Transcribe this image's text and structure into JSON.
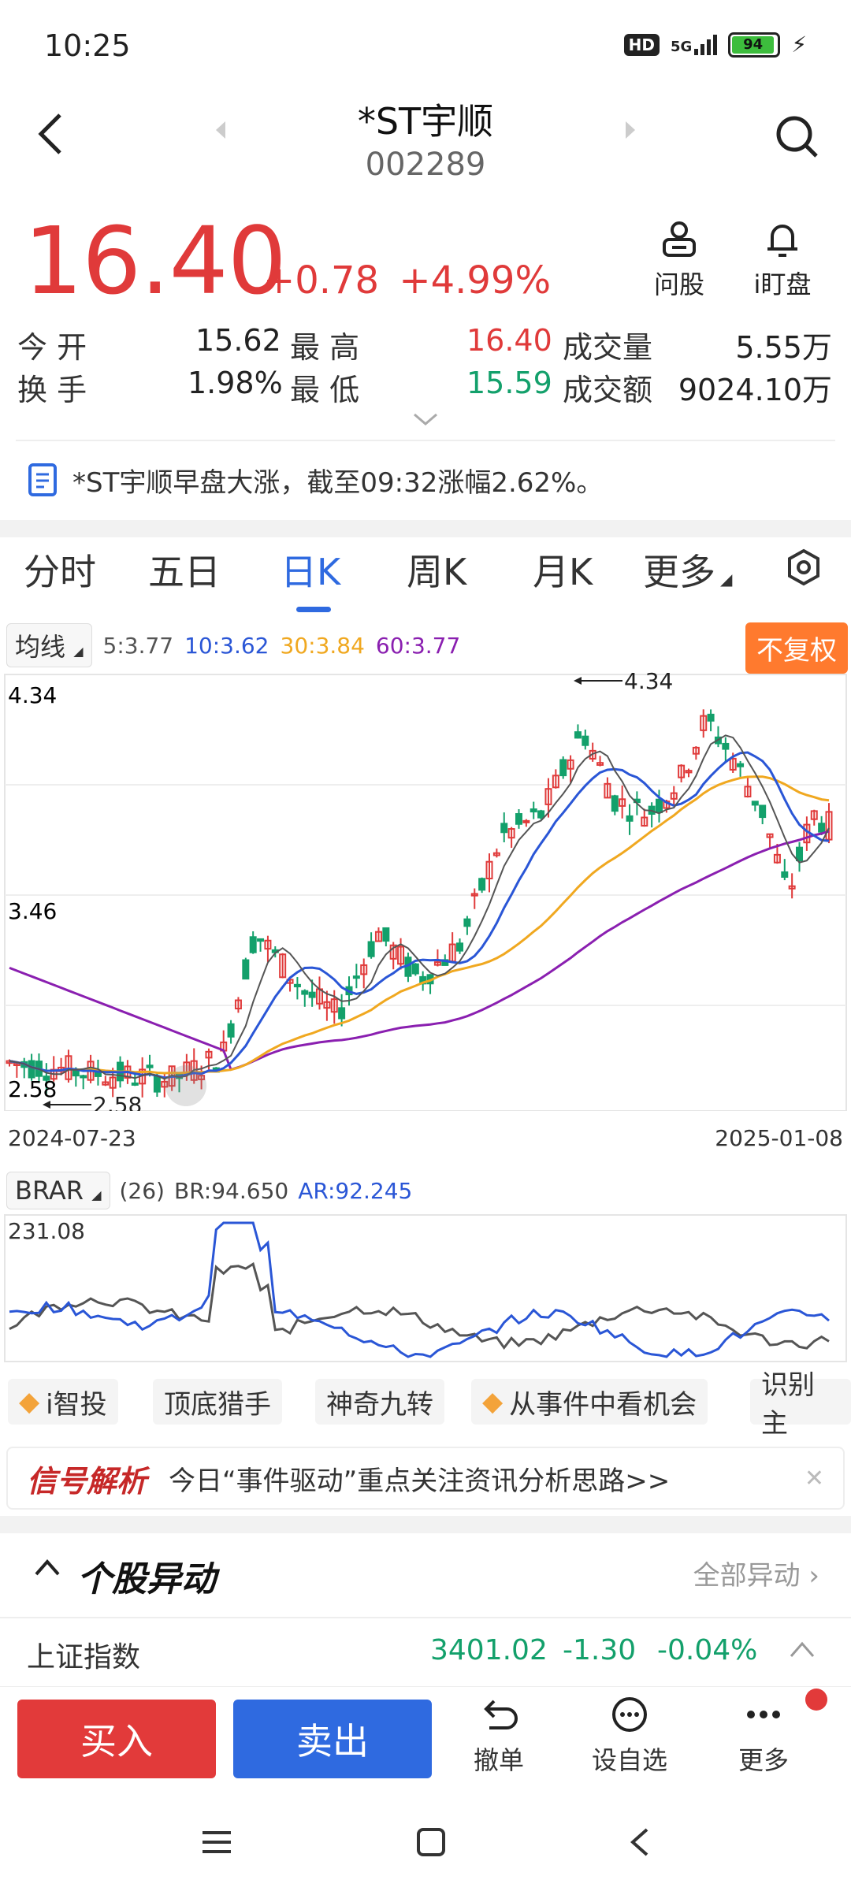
{
  "status_bar": {
    "time": "10:25",
    "hd": "HD",
    "network": "5G",
    "battery": "94"
  },
  "header": {
    "name": "*ST宇顺",
    "code": "002289"
  },
  "quote": {
    "price": "16.40",
    "change": "+0.78",
    "change_pct": "+4.99%",
    "actions": [
      {
        "label": "问股",
        "icon": "robot-icon"
      },
      {
        "label": "i盯盘",
        "icon": "bell-icon"
      }
    ]
  },
  "stats": {
    "open_label": "今 开",
    "open": "15.62",
    "high_label": "最 高",
    "high": "16.40",
    "volume_label": "成交量",
    "volume": "5.55万",
    "turnover_label": "换 手",
    "turnover": "1.98%",
    "low_label": "最 低",
    "low": "15.59",
    "amount_label": "成交额",
    "amount": "9024.10万"
  },
  "news": "*ST宇顺早盘大涨，截至09:32涨幅2.62%。",
  "tabs": [
    "分时",
    "五日",
    "日K",
    "周K",
    "月K",
    "更多"
  ],
  "ma_legend": {
    "dropdown": "均线",
    "ma5": "5:3.77",
    "ma10": "10:3.62",
    "ma30": "30:3.84",
    "ma60": "60:3.77",
    "fq_button": "不复权"
  },
  "colors": {
    "up": "#e03a3a",
    "down": "#13a06b",
    "ma5": "#555555",
    "ma10": "#2a56d6",
    "ma30": "#f0a820",
    "ma60": "#8a1fb0",
    "accent": "#2f6ae0"
  },
  "chart_data": [
    {
      "type": "candlestick",
      "y_axis_labels": [
        "4.34",
        "3.46",
        "2.58"
      ],
      "ylim": [
        2.58,
        4.34
      ],
      "max_marker": "4.34",
      "min_marker": "2.58",
      "x_start": "2024-07-23",
      "x_end": "2025-01-08",
      "series": [
        {
          "name": "5",
          "last": 3.77
        },
        {
          "name": "10",
          "last": 3.62
        },
        {
          "name": "30",
          "last": 3.84
        },
        {
          "name": "60",
          "last": 3.77
        }
      ]
    },
    {
      "type": "line",
      "indicator": "BRAR",
      "period": "(26)",
      "ymax_label": "231.08",
      "series": [
        {
          "name": "BR",
          "last": 94.65,
          "label": "BR:94.650"
        },
        {
          "name": "AR",
          "last": 92.245,
          "label": "AR:92.245"
        }
      ]
    }
  ],
  "chips": [
    "i智投",
    "顶底猎手",
    "神奇九转",
    "从事件中看机会",
    "识别主"
  ],
  "signal": {
    "title": "信号解析",
    "text": "今日“事件驱动”重点关注资讯分析思路>>"
  },
  "section": {
    "title": "个股异动",
    "link": "全部异动"
  },
  "index_row": {
    "name": "上证指数",
    "value": "3401.02",
    "change": "-1.30",
    "pct": "-0.04%"
  },
  "bottom_bar": {
    "buy": "买入",
    "sell": "卖出",
    "cancel": "撤单",
    "watch": "设自选",
    "more": "更多"
  }
}
